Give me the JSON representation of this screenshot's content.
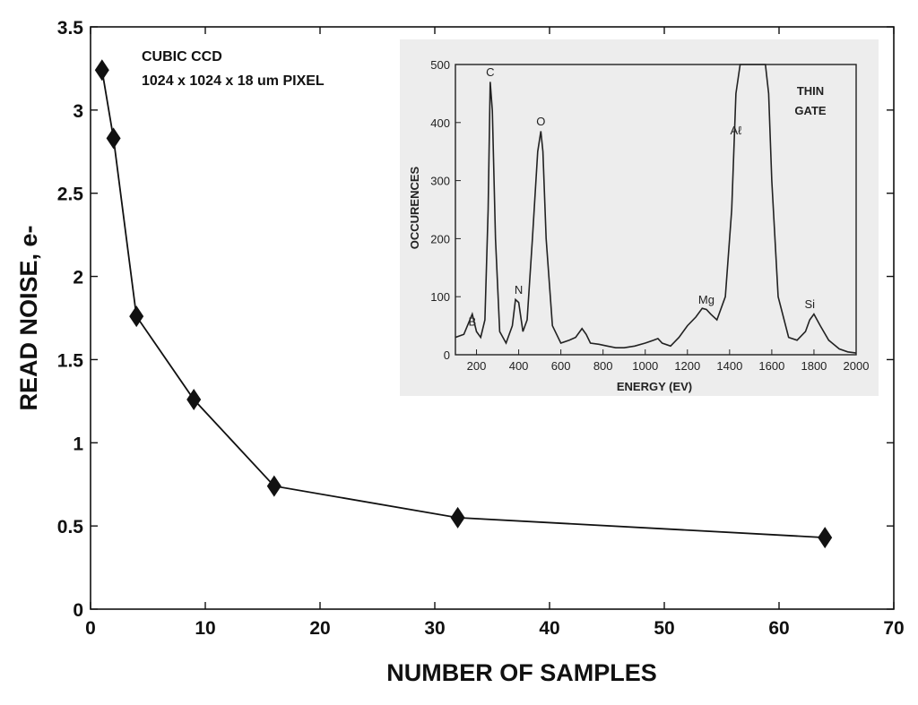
{
  "chart_data": [
    {
      "type": "line",
      "title": "",
      "xlabel": "NUMBER OF SAMPLES",
      "ylabel": "READ NOISE, e-",
      "xlim": [
        0,
        70
      ],
      "ylim": [
        0,
        3.5
      ],
      "xticks": [
        "0",
        "10",
        "20",
        "30",
        "40",
        "50",
        "60",
        "70"
      ],
      "yticks": [
        "0",
        "0.5",
        "1",
        "1.5",
        "2",
        "2.5",
        "3",
        "3.5"
      ],
      "marker": "diamond",
      "series": [
        {
          "x": [
            1,
            2,
            4,
            9,
            16,
            32,
            64
          ],
          "y": [
            3.24,
            2.83,
            1.76,
            1.26,
            0.74,
            0.55,
            0.43
          ]
        }
      ],
      "annotation": [
        "CUBIC CCD",
        "1024 x 1024 x 18 um PIXEL"
      ]
    },
    {
      "type": "line",
      "title": "",
      "xlabel": "ENERGY (EV)",
      "ylabel": "OCCURENCES",
      "xlim": [
        100,
        2000
      ],
      "ylim": [
        0,
        500
      ],
      "xticks": [
        "200",
        "400",
        "600",
        "800",
        "1000",
        "1200",
        "1400",
        "1600",
        "1800",
        "2000"
      ],
      "yticks": [
        "0",
        "100",
        "200",
        "300",
        "400",
        "500"
      ],
      "series": [
        {
          "x": [
            100,
            140,
            180,
            200,
            220,
            240,
            255,
            265,
            275,
            290,
            310,
            340,
            370,
            385,
            400,
            420,
            440,
            465,
            490,
            505,
            515,
            530,
            560,
            600,
            640,
            670,
            700,
            720,
            740,
            780,
            820,
            860,
            900,
            950,
            1000,
            1040,
            1060,
            1080,
            1120,
            1160,
            1200,
            1240,
            1270,
            1290,
            1310,
            1340,
            1380,
            1410,
            1430,
            1450,
            1470,
            1550,
            1570,
            1585,
            1600,
            1630,
            1680,
            1720,
            1760,
            1780,
            1800,
            1830,
            1870,
            1920,
            1960,
            2000
          ],
          "y": [
            30,
            35,
            70,
            40,
            30,
            60,
            250,
            470,
            420,
            200,
            40,
            20,
            50,
            95,
            90,
            40,
            60,
            200,
            350,
            385,
            350,
            200,
            50,
            20,
            25,
            30,
            45,
            35,
            20,
            18,
            15,
            12,
            12,
            15,
            20,
            25,
            28,
            20,
            15,
            30,
            50,
            65,
            80,
            78,
            70,
            60,
            100,
            250,
            450,
            500,
            500,
            500,
            500,
            450,
            300,
            100,
            30,
            25,
            40,
            60,
            70,
            50,
            25,
            10,
            5,
            3
          ]
        }
      ],
      "annotations": [
        {
          "text": "B",
          "x": 180,
          "y": 50
        },
        {
          "text": "C",
          "x": 265,
          "y": 480
        },
        {
          "text": "N",
          "x": 400,
          "y": 105
        },
        {
          "text": "O",
          "x": 505,
          "y": 395
        },
        {
          "text": "Mg",
          "x": 1290,
          "y": 88
        },
        {
          "text": "Aℓ",
          "x": 1430,
          "y": 380
        },
        {
          "text": "Si",
          "x": 1780,
          "y": 80
        }
      ],
      "label": [
        "THIN",
        "GATE"
      ]
    }
  ]
}
